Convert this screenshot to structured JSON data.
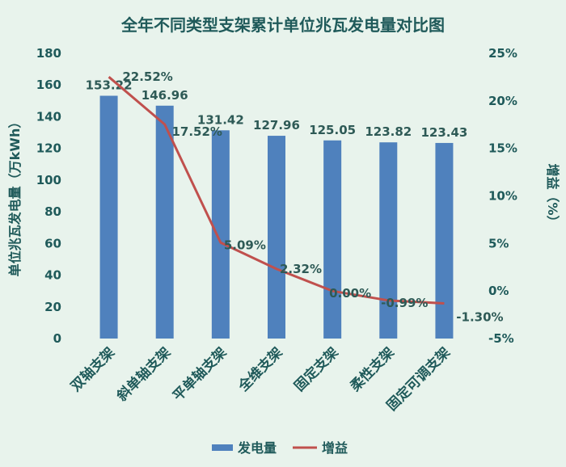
{
  "chart_data": {
    "type": "bar",
    "title": "全年不同类型支架累计单位兆瓦发电量对比图",
    "categories": [
      "双轴支架",
      "斜单轴支架",
      "平单轴支架",
      "全维支架",
      "固定支架",
      "柔性支架",
      "固定可调支架"
    ],
    "series": [
      {
        "name": "发电量",
        "type": "bar",
        "axis": "left",
        "color": "#4f81bd",
        "values": [
          153.22,
          146.96,
          131.42,
          127.96,
          125.05,
          123.82,
          123.43
        ],
        "labels": [
          "153.22",
          "146.96",
          "131.42",
          "127.96",
          "125.05",
          "123.82",
          "123.43"
        ]
      },
      {
        "name": "增益",
        "type": "line",
        "axis": "right",
        "color": "#c0504d",
        "values": [
          22.52,
          17.52,
          5.09,
          2.32,
          0.0,
          -0.99,
          -1.3
        ],
        "labels": [
          "22.52%",
          "17.52%",
          "5.09%",
          "2.32%",
          "0.00%",
          "-0.99%",
          "-1.30%"
        ]
      }
    ],
    "ylabel": "单位兆瓦发电量（万kWh）",
    "y2label": "增益（%）",
    "ylim": [
      0,
      180
    ],
    "yticks": [
      "0",
      "20",
      "40",
      "60",
      "80",
      "100",
      "120",
      "140",
      "160",
      "180"
    ],
    "y2lim": [
      -5,
      25
    ],
    "y2ticks": [
      "-5%",
      "0%",
      "5%",
      "10%",
      "15%",
      "20%",
      "25%"
    ],
    "grid": false,
    "legend": "bottom"
  }
}
